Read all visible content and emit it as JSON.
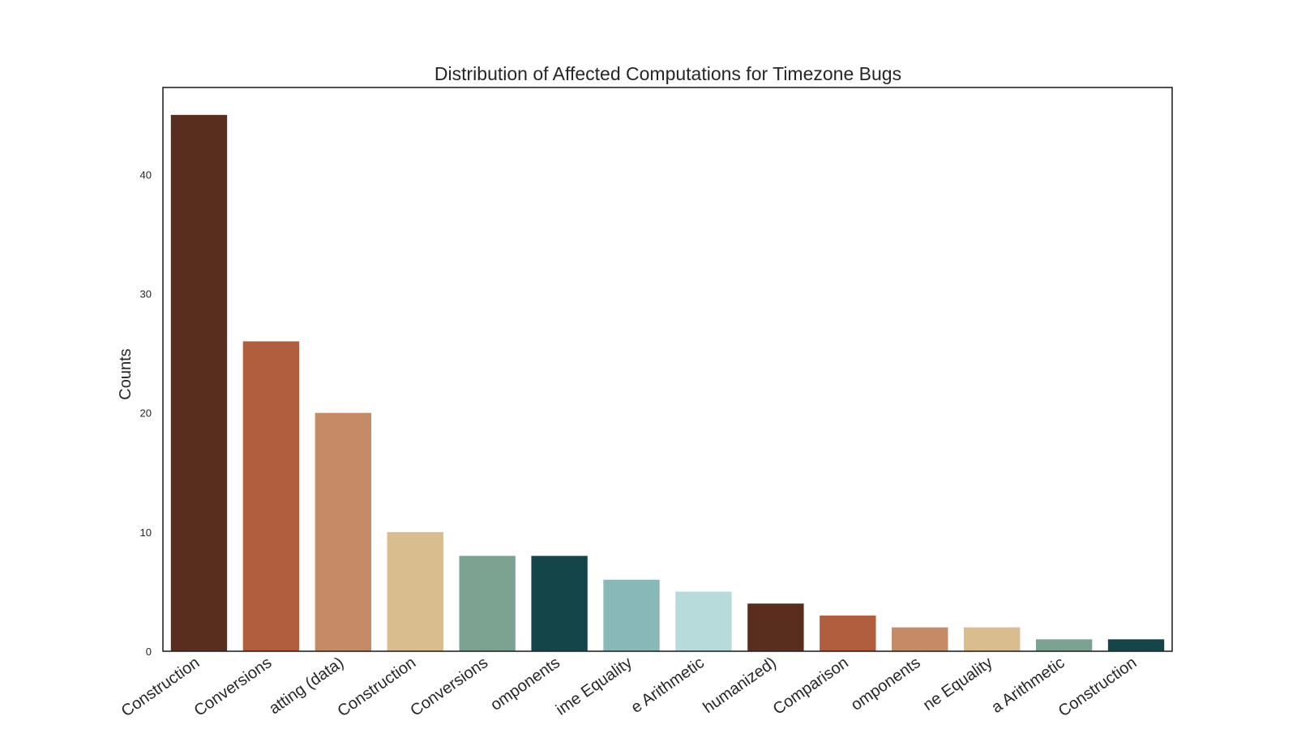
{
  "chart_data": {
    "type": "bar",
    "title": "Distribution of Affected Computations for Timezone Bugs",
    "xlabel": "",
    "ylabel": "Counts",
    "ylim": [
      0,
      47.3
    ],
    "yticks": [
      0,
      10,
      20,
      30,
      40
    ],
    "grid": false,
    "categories": [
      "Construction",
      "Conversions",
      "atting (data)",
      "Construction",
      "Conversions",
      "omponents",
      "ime Equality",
      "e Arithmetic",
      "humanized)",
      "Comparison",
      "omponents",
      "ne Equality",
      "a Arithmetic",
      "Construction"
    ],
    "values": [
      45,
      26,
      20,
      10,
      8,
      8,
      6,
      5,
      4,
      3,
      2,
      2,
      1,
      1
    ],
    "colors": [
      "#5a2e1f",
      "#b05e3e",
      "#c68b66",
      "#d9bd8e",
      "#7ca391",
      "#134549",
      "#88b8b7",
      "#b7dbdb",
      "#5a2e1f",
      "#b05e3e",
      "#c68b66",
      "#d9bd8e",
      "#7ca391",
      "#134549"
    ]
  }
}
